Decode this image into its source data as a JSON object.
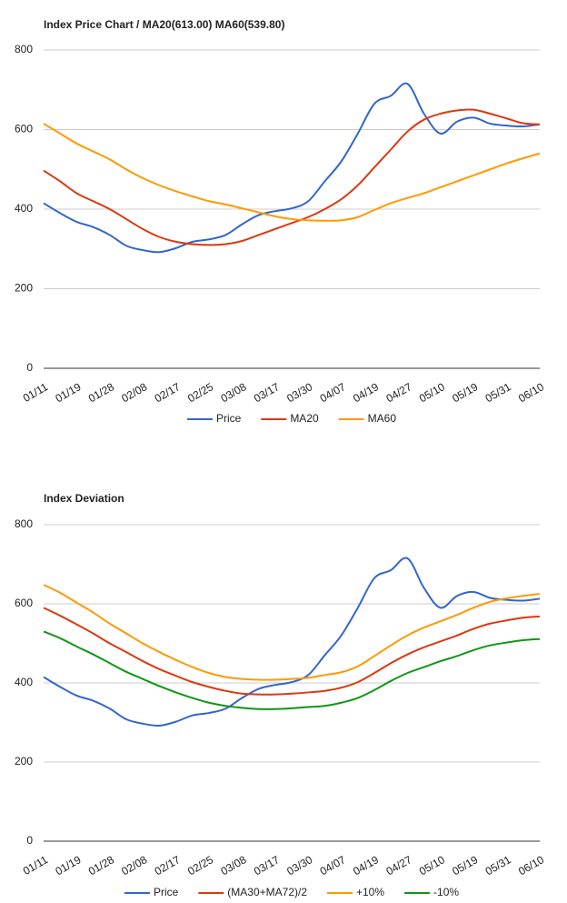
{
  "chart_data": [
    {
      "type": "line",
      "title": "Index Price Chart / MA20(613.00) MA60(539.80)",
      "categories": [
        "01/11",
        null,
        "01/19",
        null,
        "01/28",
        null,
        "02/08",
        null,
        "02/17",
        null,
        "02/25",
        null,
        "03/08",
        null,
        "03/17",
        null,
        "03/30",
        null,
        "04/07",
        null,
        "04/19",
        null,
        "04/27",
        null,
        "05/10",
        null,
        "05/19",
        null,
        "05/31",
        null,
        "06/10"
      ],
      "series": [
        {
          "name": "Price",
          "color": "#3366cc",
          "values": [
            415,
            390,
            368,
            355,
            335,
            308,
            297,
            292,
            302,
            318,
            324,
            335,
            362,
            385,
            395,
            402,
            420,
            470,
            520,
            590,
            665,
            685,
            715,
            640,
            590,
            620,
            630,
            615,
            610,
            608,
            613
          ]
        },
        {
          "name": "MA20",
          "color": "#dc3912",
          "values": [
            497,
            470,
            440,
            420,
            400,
            375,
            350,
            330,
            318,
            312,
            310,
            312,
            320,
            335,
            350,
            365,
            380,
            400,
            425,
            460,
            505,
            550,
            595,
            625,
            640,
            648,
            650,
            640,
            628,
            616,
            613
          ]
        },
        {
          "name": "MA60",
          "color": "#ff9900",
          "values": [
            615,
            590,
            565,
            545,
            525,
            500,
            478,
            460,
            445,
            432,
            420,
            412,
            402,
            392,
            382,
            375,
            372,
            371,
            372,
            380,
            398,
            415,
            428,
            440,
            455,
            470,
            485,
            500,
            515,
            528,
            540
          ]
        }
      ],
      "ylim": [
        0,
        800
      ],
      "yticks": [
        0,
        200,
        400,
        600,
        800
      ],
      "grid": true,
      "legend": "bottom"
    },
    {
      "type": "line",
      "title": "Index Deviation",
      "categories": [
        "01/11",
        null,
        "01/19",
        null,
        "01/28",
        null,
        "02/08",
        null,
        "02/17",
        null,
        "02/25",
        null,
        "03/08",
        null,
        "03/17",
        null,
        "03/30",
        null,
        "04/07",
        null,
        "04/19",
        null,
        "04/27",
        null,
        "05/10",
        null,
        "05/19",
        null,
        "05/31",
        null,
        "06/10"
      ],
      "series": [
        {
          "name": "Price",
          "color": "#3366cc",
          "values": [
            415,
            390,
            368,
            355,
            335,
            308,
            297,
            292,
            302,
            318,
            324,
            335,
            362,
            385,
            395,
            402,
            420,
            470,
            520,
            590,
            665,
            685,
            715,
            640,
            590,
            620,
            630,
            615,
            610,
            608,
            613
          ]
        },
        {
          "name": "(MA30+MA72)/2",
          "color": "#dc3912",
          "values": [
            590,
            570,
            548,
            525,
            500,
            478,
            455,
            435,
            418,
            402,
            390,
            380,
            373,
            371,
            371,
            373,
            376,
            380,
            388,
            402,
            425,
            450,
            472,
            490,
            505,
            520,
            537,
            550,
            558,
            565,
            568
          ]
        },
        {
          "name": "+10%",
          "color": "#ff9900",
          "values": [
            648,
            628,
            603,
            578,
            550,
            525,
            500,
            478,
            458,
            440,
            425,
            415,
            410,
            408,
            408,
            410,
            413,
            420,
            427,
            442,
            468,
            495,
            520,
            540,
            556,
            572,
            590,
            605,
            614,
            620,
            625
          ]
        },
        {
          "name": "-10%",
          "color": "#109618",
          "values": [
            530,
            513,
            492,
            472,
            450,
            428,
            410,
            392,
            376,
            362,
            350,
            342,
            337,
            334,
            334,
            336,
            339,
            342,
            350,
            362,
            382,
            405,
            425,
            440,
            455,
            468,
            483,
            495,
            502,
            508,
            511
          ]
        }
      ],
      "ylim": [
        0,
        800
      ],
      "yticks": [
        0,
        200,
        400,
        600,
        800
      ],
      "grid": true,
      "legend": "bottom"
    }
  ]
}
